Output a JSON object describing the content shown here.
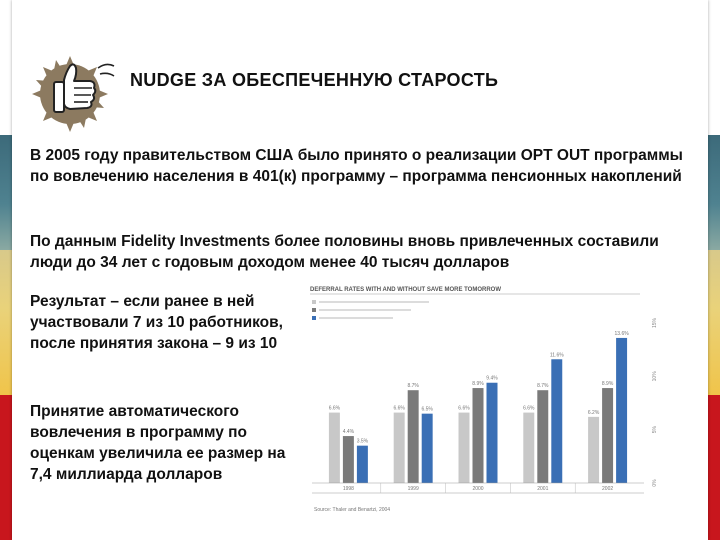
{
  "slide": {
    "title": "NUDGE ЗА ОБЕСПЕЧЕННУЮ СТАРОСТЬ",
    "paragraph1": "В 2005 году правительством США было принято о реализации OPT OUT программы по вовлечению населения в 401(к) программу – программа пенсионных накоплений",
    "paragraph2": "По данным Fidelity Investments более половины вновь привлеченных составили люди до 34 лет с годовым доходом менее 40 тысяч долларов",
    "paragraph3": "Результат – если ранее в ней участвовали 7 из 10 работников, после принятия закона – 9 из 10",
    "paragraph4": "Принятие автоматического вовлечения в программу по оценкам увеличила ее размер на 7,4 миллиарда долларов",
    "icon": "thumbs-up-icon",
    "colors": {
      "red_band": "#c8161d",
      "teal_band": "#4f8290",
      "yellow_band": "#e9d27a"
    }
  },
  "chart_data": {
    "type": "bar",
    "title": "DEFERRAL RATES WITH AND WITHOUT SAVE MORE TOMORROW",
    "categories": [
      "1998",
      "1999",
      "2000",
      "2001",
      "2002"
    ],
    "series": [
      {
        "name": "",
        "color": "#c8c8c8",
        "values": [
          6.6,
          6.6,
          6.6,
          6.6,
          6.2
        ]
      },
      {
        "name": "",
        "color": "#7a7a7a",
        "values": [
          4.4,
          8.7,
          8.9,
          8.7,
          8.9
        ]
      },
      {
        "name": "",
        "color": "#3a6fb5",
        "values": [
          3.5,
          6.5,
          9.4,
          11.6,
          13.6
        ]
      }
    ],
    "value_labels": [
      [
        "6.6%",
        "6.6%",
        "6.6%",
        "6.6%",
        "6.2%"
      ],
      [
        "4.4%",
        "8.7%",
        "8.9%",
        "8.7%",
        "8.9%"
      ],
      [
        "3.5%",
        "6.5%",
        "9.4%",
        "11.6%",
        "13.6%"
      ]
    ],
    "ylim": [
      0,
      15
    ],
    "y_ticks": [
      "15%",
      "10%",
      "5%",
      "0%"
    ],
    "y_tick_values": [
      15,
      10,
      5,
      0
    ],
    "source": "Source: Thaler and Benartzi, 2004",
    "grid": false,
    "legend_position": "top-left"
  }
}
